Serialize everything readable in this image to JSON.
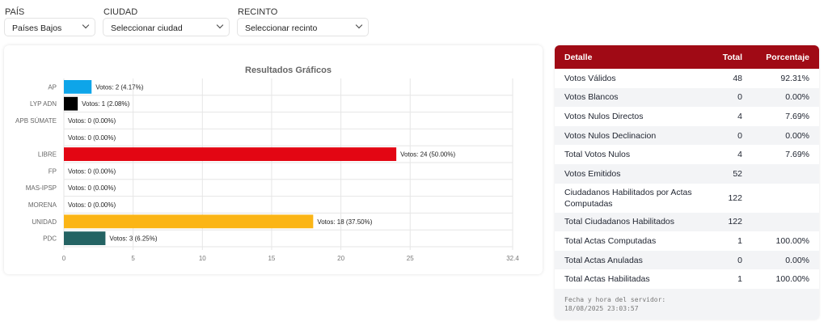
{
  "filters": [
    {
      "label": "PAÍS",
      "value": "Países Bajos"
    },
    {
      "label": "CIUDAD",
      "value": "Seleccionar ciudad"
    },
    {
      "label": "RECINTO",
      "value": "Seleccionar recinto"
    }
  ],
  "chart_data": {
    "type": "bar",
    "orientation": "horizontal",
    "title": "Resultados Gráficos",
    "categories": [
      "AP",
      "LYP ADN",
      "APB SÚMATE",
      "",
      "LIBRE",
      "FP",
      "MAS-IPSP",
      "MORENA",
      "UNIDAD",
      "PDC"
    ],
    "values": [
      2,
      1,
      0,
      0,
      24,
      0,
      0,
      0,
      18,
      3
    ],
    "labels": [
      "Votos: 2 (4.17%)",
      "Votos: 1 (2.08%)",
      "Votos: 0 (0.00%)",
      "Votos: 0 (0.00%)",
      "Votos: 24 (50.00%)",
      "Votos: 0 (0.00%)",
      "Votos: 0 (0.00%)",
      "Votos: 0 (0.00%)",
      "Votos: 18 (37.50%)",
      "Votos: 3 (6.25%)"
    ],
    "colors": [
      "#0ea5e9",
      "#000000",
      "#cccccc",
      "#cccccc",
      "#e30613",
      "#cccccc",
      "#cccccc",
      "#cccccc",
      "#fbb516",
      "#246363"
    ],
    "xticks": [
      "0",
      "5",
      "10",
      "15",
      "20",
      "25",
      "32.4"
    ],
    "xtick_values": [
      0,
      5,
      10,
      15,
      20,
      25,
      32.4
    ],
    "xlim": [
      0,
      32.4
    ],
    "grid": true
  },
  "table": {
    "headers": [
      "Detalle",
      "Total",
      "Porcentaje"
    ],
    "rows": [
      [
        "Votos Válidos",
        "48",
        "92.31%"
      ],
      [
        "Votos Blancos",
        "0",
        "0.00%"
      ],
      [
        "Votos Nulos Directos",
        "4",
        "7.69%"
      ],
      [
        "Votos Nulos Declinacion",
        "0",
        "0.00%"
      ],
      [
        "Total Votos Nulos",
        "4",
        "7.69%"
      ],
      [
        "Votos Emitidos",
        "52",
        ""
      ],
      [
        "Ciudadanos Habilitados por Actas Computadas",
        "122",
        ""
      ],
      [
        "Total Ciudadanos Habilitados",
        "122",
        ""
      ],
      [
        "Total Actas Computadas",
        "1",
        "100.00%"
      ],
      [
        "Total Actas Anuladas",
        "0",
        "0.00%"
      ],
      [
        "Total Actas Habilitadas",
        "1",
        "100.00%"
      ]
    ],
    "footer_label": "Fecha y hora del servidor:",
    "footer_value": "18/08/2025 23:03:57"
  },
  "colors": {
    "header": "#a00a15"
  }
}
